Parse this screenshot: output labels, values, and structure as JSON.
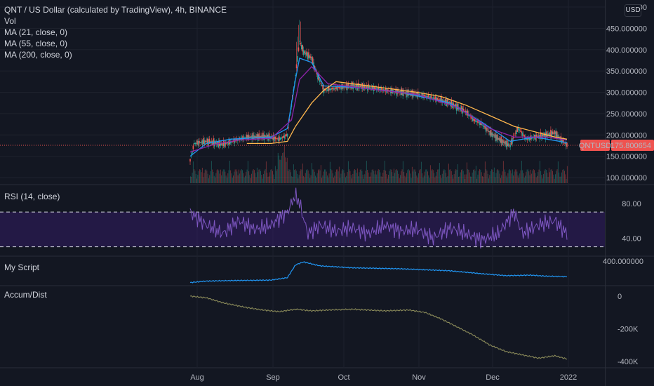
{
  "colors": {
    "background": "#131722",
    "grid": "#1e222d",
    "separator": "#2a2e39",
    "up": "#26a69a",
    "down": "#ef5350",
    "ma21": "#2196f3",
    "ma55": "#8e24aa",
    "ma200": "#ffb74d",
    "rsi": "#7e57c2",
    "rsi_band": "#311b62",
    "myscript": "#2196f3",
    "accdist": "#8b8b5a",
    "price_line": "#ef5350"
  },
  "legend": {
    "title": "QNT / US Dollar (calculated by TradingView), 4h, BINANCE",
    "vol": "Vol",
    "ma21": "MA (21, close, 0)",
    "ma55": "MA (55, close, 0)",
    "ma200": "MA (200, close, 0)"
  },
  "panes": {
    "rsi_label": "RSI (14, close)",
    "myscript_label": "My Script",
    "accdist_label": "Accum/Dist"
  },
  "price_axis": {
    "currency": "USD",
    "ticks": [
      "500",
      "450.000000",
      "400.000000",
      "350.000000",
      "300.000000",
      "250.000000",
      "200.000000",
      "150.000000",
      "100.000000"
    ],
    "symbol_tag": "QNTUSD",
    "last_price": "175.800654"
  },
  "rsi_axis": {
    "ticks": [
      "80.00",
      "40.00"
    ]
  },
  "myscript_axis": {
    "ticks": [
      "400.000000"
    ]
  },
  "accdist_axis": {
    "ticks": [
      "0",
      "-200K",
      "-400K"
    ]
  },
  "time_axis": {
    "labels": [
      "Aug",
      "Sep",
      "Oct",
      "Nov",
      "Dec",
      "2022"
    ]
  },
  "chart_data": [
    {
      "type": "line",
      "pane": "price",
      "title": "QNT / US Dollar (calculated by TradingView), 4h, BINANCE",
      "x_labels": [
        "Aug",
        "Sep",
        "Oct",
        "Nov",
        "Dec",
        "2022"
      ],
      "ylim": [
        90,
        500
      ],
      "series": [
        {
          "name": "QNTUSD",
          "points": [
            [
              0,
              140
            ],
            [
              1,
              180
            ],
            [
              4,
              185
            ],
            [
              8,
              178
            ],
            [
              14,
              195
            ],
            [
              19,
              196
            ],
            [
              22,
              190
            ],
            [
              24,
              200
            ],
            [
              26,
              340
            ],
            [
              27,
              420
            ],
            [
              28,
              395
            ],
            [
              30,
              380
            ],
            [
              31,
              350
            ],
            [
              33,
              305
            ],
            [
              36,
              310
            ],
            [
              40,
              315
            ],
            [
              44,
              312
            ],
            [
              48,
              305
            ],
            [
              52,
              300
            ],
            [
              56,
              295
            ],
            [
              60,
              287
            ],
            [
              64,
              275
            ],
            [
              68,
              255
            ],
            [
              70,
              235
            ],
            [
              72,
              225
            ],
            [
              74,
              205
            ],
            [
              77,
              185
            ],
            [
              79,
              175
            ],
            [
              80,
              200
            ],
            [
              81,
              215
            ],
            [
              83,
              190
            ],
            [
              85,
              195
            ],
            [
              88,
              200
            ],
            [
              90,
              205
            ],
            [
              92,
              185
            ],
            [
              93,
              175.8
            ]
          ]
        },
        {
          "name": "MA (21, close, 0)",
          "points": [
            [
              0,
              150
            ],
            [
              4,
              180
            ],
            [
              10,
              190
            ],
            [
              20,
              195
            ],
            [
              24,
              215
            ],
            [
              26,
              330
            ],
            [
              27,
              380
            ],
            [
              30,
              370
            ],
            [
              33,
              315
            ],
            [
              40,
              312
            ],
            [
              52,
              300
            ],
            [
              64,
              275
            ],
            [
              72,
              230
            ],
            [
              79,
              185
            ],
            [
              85,
              195
            ],
            [
              93,
              182
            ]
          ]
        },
        {
          "name": "MA (55, close, 0)",
          "points": [
            [
              0,
              160
            ],
            [
              6,
              178
            ],
            [
              12,
              188
            ],
            [
              20,
              192
            ],
            [
              25,
              235
            ],
            [
              27,
              330
            ],
            [
              30,
              360
            ],
            [
              34,
              320
            ],
            [
              44,
              308
            ],
            [
              56,
              295
            ],
            [
              66,
              265
            ],
            [
              74,
              215
            ],
            [
              80,
              195
            ],
            [
              88,
              195
            ],
            [
              93,
              188
            ]
          ]
        },
        {
          "name": "MA (200, close, 0)",
          "points": [
            [
              14,
              180
            ],
            [
              20,
              180
            ],
            [
              24,
              185
            ],
            [
              26,
              220
            ],
            [
              30,
              275
            ],
            [
              33,
              305
            ],
            [
              36,
              325
            ],
            [
              40,
              320
            ],
            [
              48,
              310
            ],
            [
              56,
              300
            ],
            [
              62,
              290
            ],
            [
              68,
              270
            ],
            [
              74,
              245
            ],
            [
              80,
              220
            ],
            [
              86,
              205
            ],
            [
              90,
              195
            ],
            [
              93,
              190
            ]
          ]
        }
      ]
    },
    {
      "type": "line",
      "pane": "rsi",
      "title": "RSI (14, close)",
      "ylim": [
        20,
        100
      ],
      "bands": [
        30,
        70
      ],
      "series": [
        {
          "name": "RSI (14, close)",
          "points": [
            [
              0,
              70
            ],
            [
              4,
              55
            ],
            [
              8,
              45
            ],
            [
              12,
              60
            ],
            [
              16,
              50
            ],
            [
              20,
              55
            ],
            [
              24,
              70
            ],
            [
              26,
              90
            ],
            [
              27,
              80
            ],
            [
              29,
              45
            ],
            [
              32,
              55
            ],
            [
              36,
              48
            ],
            [
              40,
              52
            ],
            [
              44,
              45
            ],
            [
              48,
              55
            ],
            [
              52,
              48
            ],
            [
              56,
              50
            ],
            [
              60,
              40
            ],
            [
              64,
              52
            ],
            [
              68,
              45
            ],
            [
              72,
              38
            ],
            [
              76,
              45
            ],
            [
              80,
              70
            ],
            [
              82,
              45
            ],
            [
              86,
              55
            ],
            [
              90,
              60
            ],
            [
              93,
              45
            ]
          ]
        }
      ]
    },
    {
      "type": "line",
      "pane": "myscript",
      "title": "My Script",
      "series": [
        {
          "name": "My Script",
          "points": [
            [
              0,
              180
            ],
            [
              4,
              195
            ],
            [
              10,
              200
            ],
            [
              20,
              205
            ],
            [
              24,
              230
            ],
            [
              26,
              360
            ],
            [
              28,
              390
            ],
            [
              32,
              350
            ],
            [
              40,
              330
            ],
            [
              52,
              320
            ],
            [
              64,
              300
            ],
            [
              72,
              270
            ],
            [
              78,
              250
            ],
            [
              84,
              255
            ],
            [
              88,
              245
            ],
            [
              93,
              240
            ]
          ]
        }
      ]
    },
    {
      "type": "line",
      "pane": "accdist",
      "title": "Accum/Dist",
      "ylim": [
        -420000,
        20000
      ],
      "series": [
        {
          "name": "Accum/Dist",
          "points": [
            [
              0,
              0
            ],
            [
              4,
              -10000
            ],
            [
              8,
              -40000
            ],
            [
              14,
              -70000
            ],
            [
              18,
              -85000
            ],
            [
              22,
              -95000
            ],
            [
              26,
              -80000
            ],
            [
              30,
              -90000
            ],
            [
              34,
              -85000
            ],
            [
              40,
              -80000
            ],
            [
              48,
              -90000
            ],
            [
              54,
              -85000
            ],
            [
              58,
              -100000
            ],
            [
              62,
              -140000
            ],
            [
              66,
              -190000
            ],
            [
              70,
              -240000
            ],
            [
              74,
              -300000
            ],
            [
              78,
              -340000
            ],
            [
              82,
              -360000
            ],
            [
              86,
              -380000
            ],
            [
              90,
              -365000
            ],
            [
              93,
              -385000
            ]
          ]
        }
      ]
    }
  ]
}
